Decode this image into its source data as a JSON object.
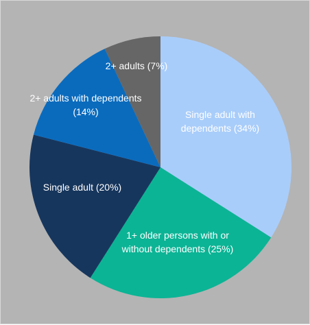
{
  "chart_data": {
    "type": "pie",
    "slices": [
      {
        "label_lines": [
          "Single adult with",
          "dependents (34%)"
        ],
        "value": 34,
        "color": "#a9cdfa"
      },
      {
        "label_lines": [
          "1+ older persons with or",
          "without dependents (25%)"
        ],
        "value": 25,
        "color": "#0bb495"
      },
      {
        "label_lines": [
          "Single adult (20%)"
        ],
        "value": 20,
        "color": "#17365d"
      },
      {
        "label_lines": [
          "2+ adults with dependents",
          "(14%)"
        ],
        "value": 14,
        "color": "#0a6bbd"
      },
      {
        "label_lines": [
          "2+ adults (7%)"
        ],
        "value": 7,
        "color": "#666666"
      }
    ],
    "start": "top",
    "direction": "clockwise",
    "legend": "none"
  }
}
